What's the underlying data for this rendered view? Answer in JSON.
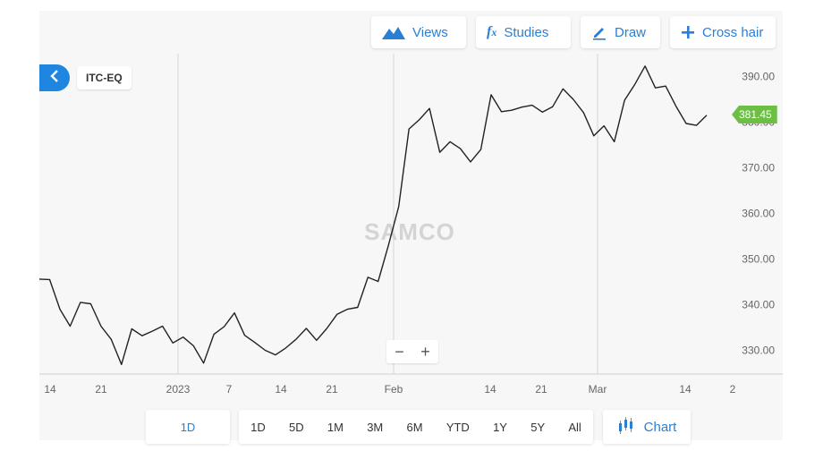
{
  "toolbar": {
    "views_label": "Views",
    "studies_label": "Studies",
    "draw_label": "Draw",
    "crosshair_label": "Cross hair"
  },
  "symbol": "ITC-EQ",
  "current_price": "381.45",
  "watermark": "SAMCO",
  "zoom": {
    "minus": "−",
    "plus": "+"
  },
  "interval_label": "1D",
  "periods": [
    "1D",
    "5D",
    "1M",
    "3M",
    "6M",
    "YTD",
    "1Y",
    "5Y",
    "All"
  ],
  "chart_type_label": "Chart",
  "colors": {
    "accent": "#2a7fd4",
    "line": "#222222",
    "price_badge": "#6cbe45",
    "back_button": "#1e86e0"
  },
  "chart_data": {
    "type": "line",
    "title": "",
    "xlabel": "",
    "ylabel": "",
    "ylim": [
      324.8,
      395.0
    ],
    "grid": "vertical lines at month boundaries",
    "y_ticks": [
      "390.00",
      "380.00",
      "370.00",
      "360.00",
      "350.00",
      "340.00",
      "330.00"
    ],
    "x_ticks": [
      "14",
      "21",
      "2023",
      "7",
      "14",
      "21",
      "Feb",
      "14",
      "21",
      "Mar",
      "14",
      "2"
    ],
    "series": [
      {
        "values": [
          345.6,
          345.5,
          339.0,
          335.3,
          340.5,
          340.2,
          335.3,
          332.4,
          326.9,
          334.7,
          333.2,
          334.2,
          335.3,
          331.6,
          332.9,
          331.0,
          327.2,
          333.5,
          335.2,
          338.2,
          333.3,
          331.7,
          330.0,
          329.0,
          330.5,
          332.4,
          334.8,
          332.2,
          334.8,
          337.9,
          339.0,
          339.4,
          346.0,
          345.1,
          353.0,
          361.5,
          378.5,
          380.5,
          383.0,
          373.4,
          375.7,
          374.2,
          371.3,
          374.0,
          386.0,
          382.3,
          382.6,
          383.3,
          383.7,
          382.2,
          383.4,
          387.3,
          385.0,
          382.1,
          377.0,
          379.2,
          375.7,
          384.8,
          388.3,
          392.3,
          387.5,
          387.9,
          383.5,
          379.7,
          379.3,
          381.5
        ]
      }
    ]
  }
}
